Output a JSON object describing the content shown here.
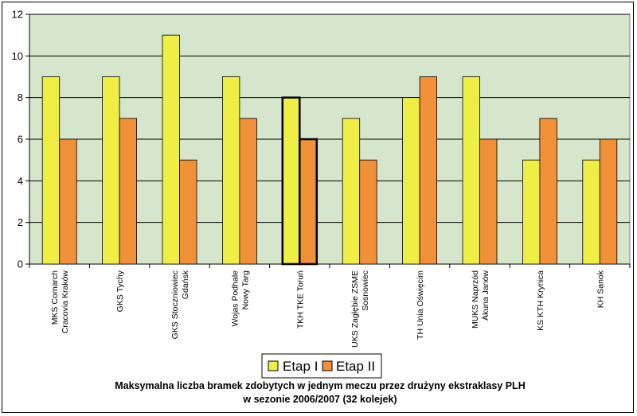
{
  "chart_data": {
    "type": "bar",
    "title": "Maksymalna liczba bramek zdobytych w jednym meczu przez drużyny ekstraklasy PLH",
    "subtitle": "w sezonie 2006/2007 (32 kolejek)",
    "categories": [
      [
        "MKS Comarch",
        "Cracovia Kraków"
      ],
      [
        "GKS Tychy"
      ],
      [
        "GKS Stoczniowiec",
        "Gdańsk"
      ],
      [
        "Wojas Podhale",
        "Nowy Targ"
      ],
      [
        "TKH TKE Toruń"
      ],
      [
        "UKS Zagłębie ZSME",
        "Sosnowiec"
      ],
      [
        "TH Unia Oświęcim"
      ],
      [
        "MUKS Naprzód",
        "Akuna Janów"
      ],
      [
        "KS KTH Krynica"
      ],
      [
        "KH Sanok"
      ]
    ],
    "series": [
      {
        "name": "Etap I",
        "color": "#EEEE44",
        "values": [
          9,
          9,
          11,
          9,
          8,
          7,
          8,
          9,
          5,
          5
        ]
      },
      {
        "name": "Etap II",
        "color": "#F0913A",
        "values": [
          6,
          7,
          5,
          7,
          6,
          5,
          9,
          6,
          7,
          6
        ]
      }
    ],
    "ylim": [
      0,
      12
    ],
    "yticks": [
      0,
      2,
      4,
      6,
      8,
      10,
      12
    ],
    "grid": true,
    "plot_background": "#D5E6CC",
    "highlighted_category_index": 4,
    "legend_position": "bottom-center"
  }
}
